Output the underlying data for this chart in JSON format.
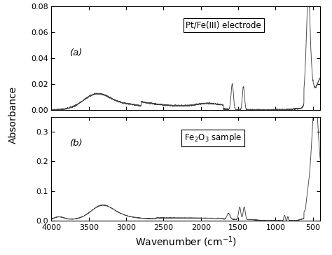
{
  "title_a": "Pt/Fe(III) electrode",
  "title_b": "Fe$_2$O$_3$ sample",
  "label_a": "(a)",
  "label_b": "(b)",
  "xlabel": "Wavenumber (cm$^{-1}$)",
  "ylabel": "Absorbance",
  "xlim_left": 4000,
  "xlim_right": 400,
  "ylim_a": [
    0.0,
    0.08
  ],
  "ylim_b": [
    0.0,
    0.35
  ],
  "yticks_a": [
    0.0,
    0.02,
    0.04,
    0.06,
    0.08
  ],
  "yticks_b": [
    0.0,
    0.1,
    0.2,
    0.3
  ],
  "xticks": [
    4000,
    3500,
    3000,
    2500,
    2000,
    1500,
    1000,
    500
  ],
  "line_color": "#444444",
  "background_color": "#ffffff"
}
